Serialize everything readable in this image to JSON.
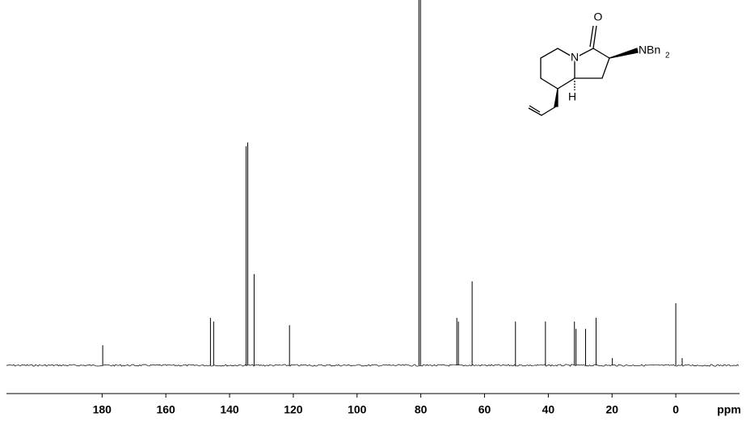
{
  "chart_data": {
    "type": "spectrum",
    "x_label": "ppm",
    "x": [
      179.8,
      146.0,
      145.0,
      134.8,
      134.3,
      132.3,
      121.2,
      80.6,
      80.1,
      68.7,
      68.2,
      63.9,
      50.3,
      40.9,
      31.8,
      31.3,
      28.3,
      25.0,
      19.9,
      0.0,
      -2.0
    ],
    "values": [
      5.5,
      13,
      12,
      60,
      61,
      25,
      11,
      100,
      100,
      13,
      12,
      23,
      12,
      12,
      12,
      10,
      10,
      13,
      2,
      17,
      2
    ],
    "color": "#000000",
    "xlim": [
      210,
      -20
    ],
    "ylim": [
      0,
      100
    ],
    "xticks": [
      180,
      160,
      140,
      120,
      100,
      80,
      60,
      40,
      20,
      0
    ]
  },
  "structure": {
    "labels": [
      "O",
      "N",
      "NBn",
      "2",
      "H"
    ]
  }
}
